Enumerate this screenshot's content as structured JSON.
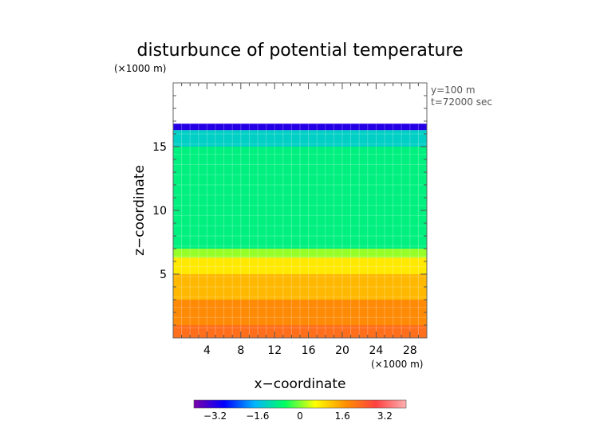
{
  "chart_data": {
    "type": "heatmap",
    "title": "disturbunce of potential temperature",
    "units_note": "(×1000 m)",
    "annotations": [
      "y=100 m",
      "t=72000 sec"
    ],
    "xlabel": "x−coordinate",
    "xunits": "(×1000 m)",
    "ylabel": "z−coordinate",
    "xlim": [
      0,
      30
    ],
    "ylim": [
      0,
      20
    ],
    "x_ticks": [
      4,
      8,
      12,
      16,
      20,
      24,
      28
    ],
    "y_ticks": [
      5,
      10,
      15
    ],
    "colorbar": {
      "min": -4,
      "max": 4,
      "tick_values": [
        -3.2,
        -1.6,
        0,
        1.6,
        3.2
      ],
      "tick_labels": [
        "−3.2",
        "−1.6",
        "0",
        "1.6",
        "3.2"
      ],
      "colors": [
        "#7a00a8",
        "#0000ff",
        "#00b4ff",
        "#00ff60",
        "#ffff00",
        "#ff9000",
        "#ff4040",
        "#ffb0b0"
      ]
    },
    "data_top_z": 16.8,
    "bands": [
      {
        "z_from": 0,
        "z_to": 1,
        "value": 2.2
      },
      {
        "z_from": 1,
        "z_to": 3,
        "value": 1.8
      },
      {
        "z_from": 3,
        "z_to": 5,
        "value": 1.3
      },
      {
        "z_from": 5,
        "z_to": 6.3,
        "value": 0.8
      },
      {
        "z_from": 6.3,
        "z_to": 7,
        "value": 0.1
      },
      {
        "z_from": 7,
        "z_to": 15,
        "value": -0.8
      },
      {
        "z_from": 15,
        "z_to": 16.3,
        "value": -1.3
      },
      {
        "z_from": 16.3,
        "z_to": 16.8,
        "value": -3.2
      }
    ]
  }
}
